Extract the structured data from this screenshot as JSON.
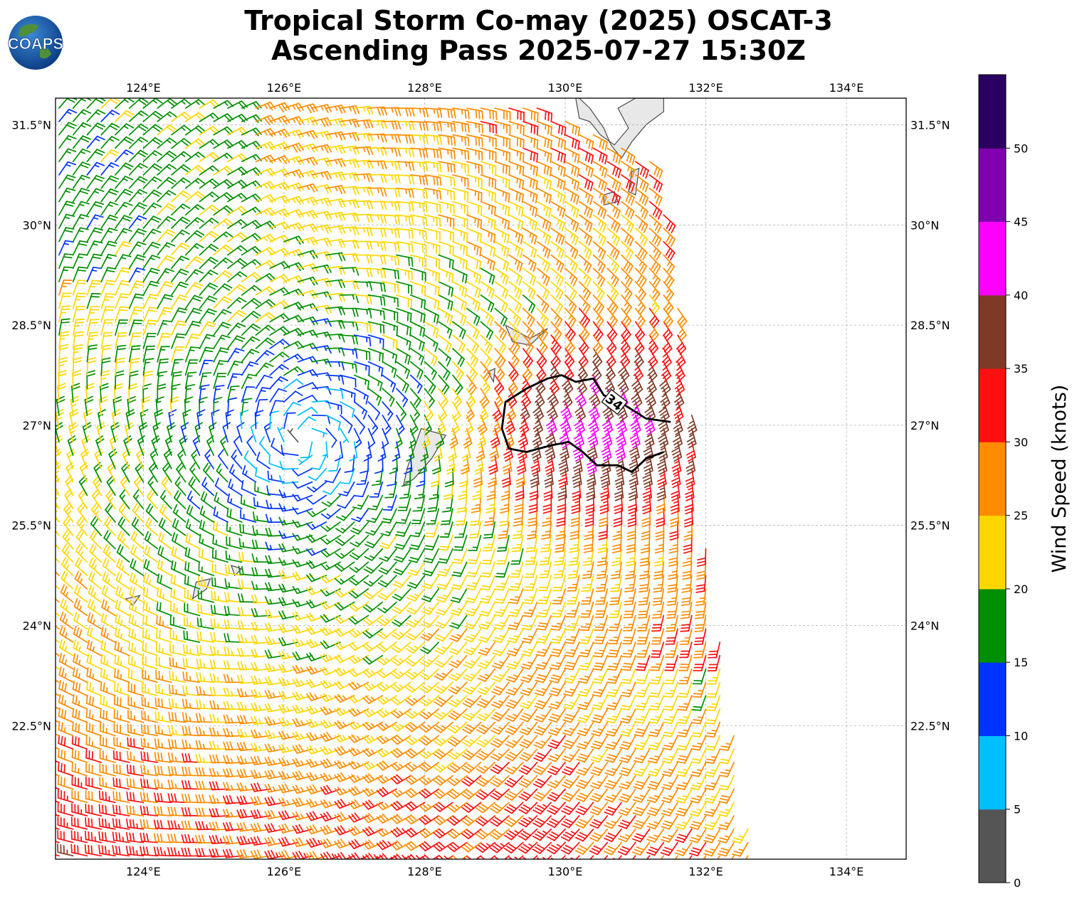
{
  "title": {
    "line1": "Tropical Storm Co-may (2025) OSCAT-3",
    "line2": "Ascending Pass 2025-07-27 15:30Z"
  },
  "logo": {
    "text": "COAPS",
    "icon": "globe-logo-icon"
  },
  "map": {
    "lon_range": [
      122.75,
      134.85
    ],
    "lat_range": [
      20.5,
      31.9
    ],
    "lon_ticks": [
      "124°E",
      "126°E",
      "128°E",
      "130°E",
      "132°E",
      "134°E"
    ],
    "lon_tick_values": [
      124,
      126,
      128,
      130,
      132,
      134
    ],
    "lat_ticks": [
      "31.5°N",
      "30°N",
      "28.5°N",
      "27°N",
      "25.5°N",
      "24°N",
      "22.5°N"
    ],
    "lat_tick_values": [
      31.5,
      30,
      28.5,
      27,
      25.5,
      24,
      22.5
    ],
    "grid": true,
    "contour_label": "34",
    "storm_center": {
      "lon": 126.3,
      "lat": 26.8
    }
  },
  "colorbar": {
    "label": "Wind Speed (knots)",
    "ticks": [
      "0",
      "5",
      "10",
      "15",
      "20",
      "25",
      "30",
      "35",
      "40",
      "45",
      "50"
    ],
    "bins": [
      {
        "from": 0,
        "to": 5,
        "color": "#555555"
      },
      {
        "from": 5,
        "to": 10,
        "color": "#00bfff"
      },
      {
        "from": 10,
        "to": 15,
        "color": "#0033ff"
      },
      {
        "from": 15,
        "to": 20,
        "color": "#008f00"
      },
      {
        "from": 20,
        "to": 25,
        "color": "#ffd700"
      },
      {
        "from": 25,
        "to": 30,
        "color": "#ff8c00"
      },
      {
        "from": 30,
        "to": 35,
        "color": "#ff0f0f"
      },
      {
        "from": 35,
        "to": 40,
        "color": "#7f3a26"
      },
      {
        "from": 40,
        "to": 45,
        "color": "#ff00ff"
      },
      {
        "from": 45,
        "to": 50,
        "color": "#8000b0"
      },
      {
        "from": 50,
        "to": 55,
        "color": "#2a0060"
      }
    ]
  }
}
